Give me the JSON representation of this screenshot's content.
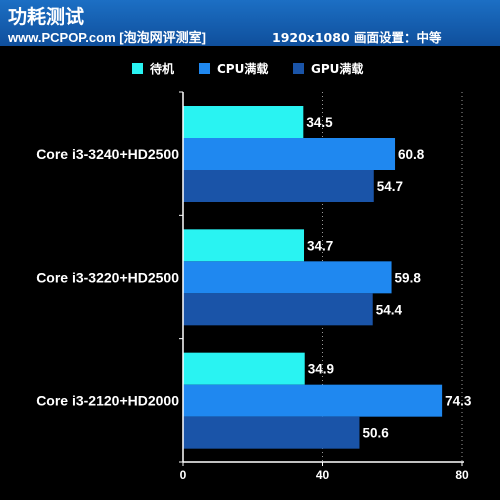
{
  "header": {
    "title": "功耗测试",
    "subtitle": "www.PCPOP.com [泡泡网评测室]",
    "settings": "1920x1080 画面设置：中等"
  },
  "colors": {
    "background": "#000000",
    "header": "#1866bb",
    "axis": "#ffffff",
    "gridline": "#9a9a9a"
  },
  "chart_data": {
    "type": "bar",
    "orientation": "horizontal",
    "title": "",
    "xlabel": "",
    "ylabel": "",
    "categories": [
      "Core i3-3240+HD2500",
      "Core i3-3220+HD2500",
      "Core i3-2120+HD2000"
    ],
    "series": [
      {
        "name": "待机",
        "color": "#29f3f2",
        "values": [
          34.5,
          34.7,
          34.9
        ]
      },
      {
        "name": "CPU满载",
        "color": "#1f88f0",
        "values": [
          60.8,
          59.8,
          74.3
        ]
      },
      {
        "name": "GPU满载",
        "color": "#1a54a8",
        "values": [
          54.7,
          54.4,
          50.6
        ]
      }
    ],
    "xlim": [
      0,
      80
    ],
    "xticks": [
      "0",
      "40",
      "80"
    ],
    "grid": true,
    "legend_position": "top"
  }
}
